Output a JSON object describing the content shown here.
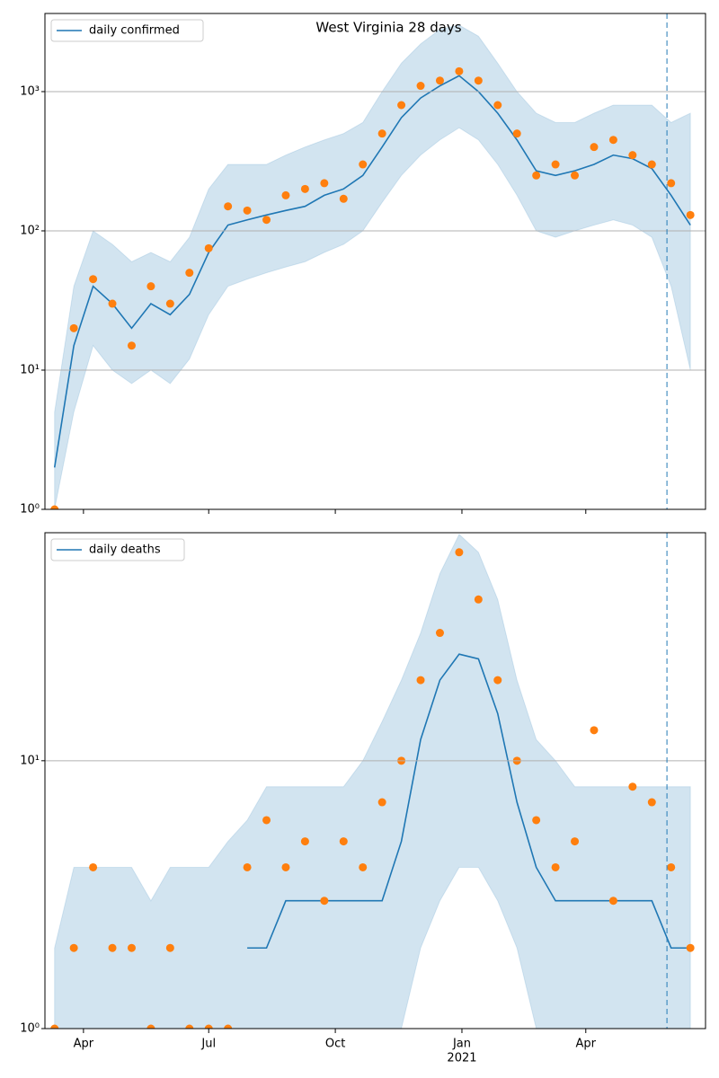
{
  "chart_data": [
    {
      "type": "line",
      "title": "West Virginia 28 days",
      "log_y": true,
      "grid": true,
      "legend": "upper left",
      "x": [
        70,
        84,
        98,
        112,
        126,
        140,
        154,
        168,
        182,
        196,
        210,
        224,
        238,
        252,
        266,
        280,
        294,
        308,
        322,
        336,
        350,
        364,
        378,
        392,
        406,
        420,
        434,
        448,
        462,
        476,
        490,
        504,
        518,
        532
      ],
      "xlim": [
        63,
        543
      ],
      "xticks": [
        {
          "value": 91,
          "label": "Apr"
        },
        {
          "value": 182,
          "label": "Jul"
        },
        {
          "value": 274,
          "label": "Oct"
        },
        {
          "value": 366,
          "label": "Jan"
        },
        {
          "value": 456,
          "label": "Apr"
        }
      ],
      "ylim": [
        1,
        3640
      ],
      "yticks": [
        {
          "value": 1,
          "label": "10⁰"
        },
        {
          "value": 10,
          "label": "10¹"
        },
        {
          "value": 100,
          "label": "10²"
        },
        {
          "value": 1000,
          "label": "10³"
        }
      ],
      "vline_x": 515,
      "series": [
        {
          "name": "daily confirmed",
          "color": "#1f77b4",
          "values": [
            2,
            15,
            40,
            30,
            20,
            30,
            25,
            35,
            70,
            110,
            120,
            130,
            140,
            150,
            180,
            200,
            250,
            400,
            650,
            900,
            1100,
            1300,
            1000,
            700,
            450,
            270,
            250,
            270,
            300,
            350,
            330,
            280,
            180,
            110
          ]
        }
      ],
      "band": {
        "color": "#1f77b4",
        "upper": [
          5,
          40,
          100,
          80,
          60,
          70,
          60,
          90,
          200,
          300,
          300,
          300,
          350,
          400,
          450,
          500,
          600,
          1000,
          1600,
          2200,
          2800,
          3000,
          2500,
          1600,
          1000,
          700,
          600,
          600,
          700,
          800,
          800,
          800,
          600,
          700
        ],
        "lower": [
          1,
          5,
          15,
          10,
          8,
          10,
          8,
          12,
          25,
          40,
          45,
          50,
          55,
          60,
          70,
          80,
          100,
          160,
          250,
          350,
          450,
          550,
          450,
          300,
          180,
          100,
          90,
          100,
          110,
          120,
          110,
          90,
          40,
          10
        ]
      },
      "points": {
        "color": "#ff7f0e",
        "values": [
          1,
          20,
          45,
          30,
          15,
          40,
          30,
          50,
          75,
          150,
          140,
          120,
          180,
          200,
          220,
          170,
          300,
          500,
          800,
          1100,
          1200,
          1400,
          1200,
          800,
          500,
          250,
          300,
          250,
          400,
          450,
          350,
          300,
          220,
          130
        ]
      }
    },
    {
      "type": "line",
      "log_y": true,
      "grid": true,
      "legend": "upper left",
      "x": [
        70,
        84,
        98,
        112,
        126,
        140,
        154,
        168,
        182,
        196,
        210,
        224,
        238,
        252,
        266,
        280,
        294,
        308,
        322,
        336,
        350,
        364,
        378,
        392,
        406,
        420,
        434,
        448,
        462,
        476,
        490,
        504,
        518,
        532
      ],
      "xlim": [
        63,
        543
      ],
      "xticks": [
        {
          "value": 91,
          "label": "Apr"
        },
        {
          "value": 182,
          "label": "Jul"
        },
        {
          "value": 274,
          "label": "Oct"
        },
        {
          "value": 366,
          "label": "Jan"
        },
        {
          "value": 456,
          "label": "Apr"
        }
      ],
      "year_label": "2021",
      "ylim": [
        1,
        71
      ],
      "yticks": [
        {
          "value": 1,
          "label": "10⁰"
        },
        {
          "value": 10,
          "label": "10¹"
        }
      ],
      "vline_x": 515,
      "series": [
        {
          "name": "daily deaths",
          "color": "#1f77b4",
          "values": [
            null,
            null,
            null,
            null,
            null,
            null,
            null,
            null,
            null,
            null,
            2,
            2,
            3,
            3,
            3,
            3,
            3,
            3,
            5,
            12,
            20,
            25,
            24,
            15,
            7,
            4,
            3,
            3,
            3,
            3,
            3,
            3,
            2,
            2
          ]
        }
      ],
      "band": {
        "color": "#1f77b4",
        "upper": [
          2,
          4,
          4,
          4,
          4,
          3,
          4,
          4,
          4,
          5,
          6,
          8,
          8,
          8,
          8,
          8,
          10,
          14,
          20,
          30,
          50,
          70,
          60,
          40,
          20,
          12,
          10,
          8,
          8,
          8,
          8,
          8,
          8,
          8
        ],
        "lower": [
          1,
          1,
          1,
          1,
          1,
          1,
          1,
          1,
          1,
          1,
          1,
          1,
          1,
          1,
          1,
          1,
          1,
          1,
          1,
          2,
          3,
          4,
          4,
          3,
          2,
          1,
          1,
          1,
          1,
          1,
          1,
          1,
          1,
          1
        ]
      },
      "points": {
        "color": "#ff7f0e",
        "values": [
          1,
          2,
          4,
          2,
          2,
          1,
          2,
          1,
          1,
          1,
          4,
          6,
          4,
          5,
          3,
          5,
          4,
          7,
          10,
          20,
          30,
          60,
          40,
          20,
          10,
          6,
          4,
          5,
          13,
          3,
          8,
          7,
          4,
          2
        ]
      }
    }
  ]
}
